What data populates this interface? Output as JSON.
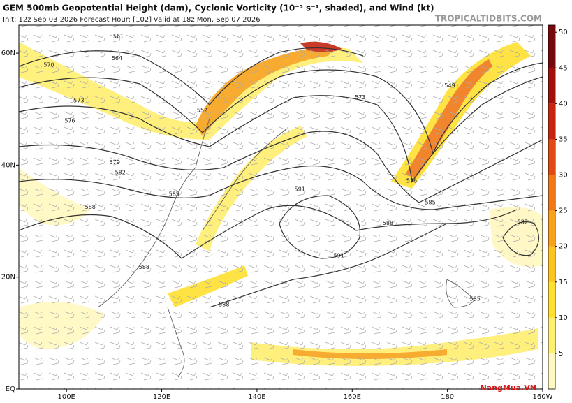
{
  "header": {
    "title": "GEM 500mb Geopotential Height (dam), Cyclonic Vorticity (10⁻⁵ s⁻¹, shaded), and Wind (kt)",
    "subtitle": "Init: 12z Sep 03 2026   Forecast Hour: [102]   valid at 18z Mon, Sep 07 2026",
    "source": "TROPICALTIDBITS.COM"
  },
  "map": {
    "lonlim": [
      90,
      200
    ],
    "latlim": [
      0,
      65
    ],
    "lon_ticks": [
      {
        "value": 100,
        "label": "100E"
      },
      {
        "value": 120,
        "label": "120E"
      },
      {
        "value": 140,
        "label": "140E"
      },
      {
        "value": 160,
        "label": "160E"
      },
      {
        "value": 180,
        "label": "180"
      },
      {
        "value": 200,
        "label": "160W"
      }
    ],
    "lat_ticks": [
      {
        "value": 60,
        "label": "60N"
      },
      {
        "value": 40,
        "label": "40N"
      },
      {
        "value": 20,
        "label": "20N"
      },
      {
        "value": 0,
        "label": "EQ"
      }
    ],
    "contour_labels": [
      {
        "text": "561",
        "lon": 110.9,
        "lat": 63
      },
      {
        "text": "564",
        "lon": 110.6,
        "lat": 59.1
      },
      {
        "text": "570",
        "lon": 96.3,
        "lat": 57.9
      },
      {
        "text": "573",
        "lon": 102.6,
        "lat": 51.5
      },
      {
        "text": "576",
        "lon": 100.7,
        "lat": 47.9
      },
      {
        "text": "579",
        "lon": 110.1,
        "lat": 40.5
      },
      {
        "text": "582",
        "lon": 111.3,
        "lat": 38.7
      },
      {
        "text": "585",
        "lon": 122.6,
        "lat": 34.8
      },
      {
        "text": "588",
        "lon": 105,
        "lat": 32.5
      },
      {
        "text": "588",
        "lon": 116.3,
        "lat": 21.8
      },
      {
        "text": "552",
        "lon": 128.5,
        "lat": 49.8
      },
      {
        "text": "591",
        "lon": 149,
        "lat": 35.7
      },
      {
        "text": "591",
        "lon": 157.2,
        "lat": 23.8
      },
      {
        "text": "588",
        "lon": 167.5,
        "lat": 29.6
      },
      {
        "text": "585",
        "lon": 176.4,
        "lat": 33.3
      },
      {
        "text": "582",
        "lon": 195.8,
        "lat": 29.8
      },
      {
        "text": "549",
        "lon": 180.5,
        "lat": 54.2
      },
      {
        "text": "573",
        "lon": 161.7,
        "lat": 52.1
      },
      {
        "text": "576",
        "lon": 172.5,
        "lat": 37.2
      },
      {
        "text": "588",
        "lon": 133.1,
        "lat": 15.1
      },
      {
        "text": "585",
        "lon": 185.8,
        "lat": 16.1
      }
    ]
  },
  "colorbar": {
    "lim": [
      0,
      51
    ],
    "ticks": [
      5,
      10,
      15,
      20,
      25,
      30,
      35,
      40,
      45,
      50
    ],
    "colors": [
      "#fff8c0",
      "#ffef70",
      "#ffe030",
      "#fcc41c",
      "#f7a21a",
      "#f07818",
      "#e04a14",
      "#c62410",
      "#a0100c",
      "#78080a"
    ]
  },
  "watermark": "NangMua.VN"
}
